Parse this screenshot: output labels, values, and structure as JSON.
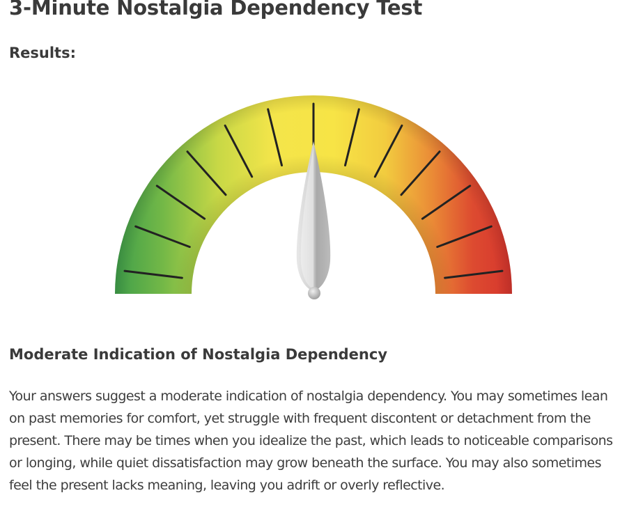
{
  "page": {
    "title": "3-Minute Nostalgia Dependency Test",
    "results_label": "Results:"
  },
  "gauge": {
    "level": 0.5,
    "tick_count": 13,
    "colors": {
      "low": "#3f9e4a",
      "mid": "#f6e33f",
      "high": "#d93a2e",
      "needle": "#c4c4c4"
    }
  },
  "result": {
    "heading": "Moderate Indication of Nostalgia Dependency",
    "body": "Your answers suggest a moderate indication of nostalgia dependency. You may sometimes lean on past memories for comfort, yet struggle with frequent discontent or detachment from the present. There may be times when you idealize the past, which leads to noticeable comparisons or longing, while quiet dissatisfaction may grow beneath the surface. You may also sometimes feel the present lacks meaning, leaving you adrift or overly reflective."
  }
}
